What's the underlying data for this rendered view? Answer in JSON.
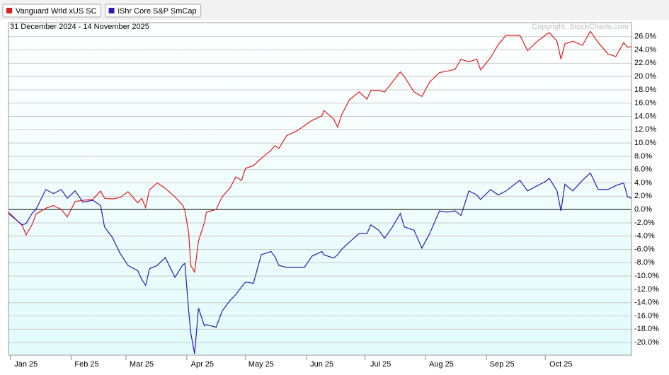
{
  "chart_data": {
    "type": "line",
    "subtitle": "31 December 2024 - 14 November 2025",
    "copyright": "Copyright, StockCharts.com",
    "x": [
      0,
      7,
      9,
      12,
      14,
      19,
      23,
      27,
      30,
      34,
      38,
      43,
      47,
      49,
      53,
      57,
      61,
      66,
      68,
      70,
      72,
      76,
      80,
      85,
      89,
      90,
      92,
      93,
      95,
      97,
      100,
      101,
      106,
      109,
      113,
      116,
      119,
      121,
      125,
      129,
      134,
      136,
      138,
      142,
      147,
      151,
      155,
      160,
      161,
      166,
      168,
      170,
      174,
      179,
      183,
      185,
      189,
      192,
      196,
      200,
      202,
      207,
      211,
      215,
      220,
      224,
      228,
      231,
      235,
      239,
      241,
      246,
      250,
      254,
      261,
      265,
      270,
      274,
      276,
      280,
      282,
      284,
      288,
      293,
      297,
      301,
      306,
      310,
      314,
      316,
      318
    ],
    "series": [
      {
        "name": "Vanguard Wrld xUS SC",
        "color": "#e41a1c",
        "values": [
          -0.4,
          -2.4,
          -3.8,
          -2.3,
          -0.7,
          0.2,
          0.6,
          0.0,
          -1.1,
          1.2,
          1.4,
          1.5,
          2.8,
          1.7,
          1.6,
          1.8,
          2.7,
          1.0,
          1.7,
          0.3,
          3.0,
          4.0,
          3.2,
          1.9,
          0.6,
          -0.1,
          -3.6,
          -8.4,
          -9.4,
          -4.7,
          -2.0,
          -0.4,
          0.0,
          1.9,
          3.2,
          4.9,
          4.4,
          6.2,
          6.6,
          7.7,
          8.9,
          9.6,
          9.2,
          11.1,
          11.8,
          12.6,
          13.4,
          14.1,
          14.9,
          13.6,
          12.4,
          14.2,
          16.5,
          17.7,
          16.6,
          17.9,
          17.9,
          17.7,
          19.2,
          20.7,
          20.0,
          17.7,
          17.0,
          19.2,
          20.6,
          20.8,
          21.1,
          22.6,
          22.2,
          22.6,
          21.0,
          22.8,
          24.8,
          26.2,
          26.2,
          23.9,
          25.3,
          26.2,
          26.6,
          25.3,
          22.6,
          24.9,
          25.3,
          24.7,
          26.8,
          25.1,
          23.4,
          23.0,
          25.1,
          24.4,
          24.5
        ]
      },
      {
        "name": "iShr Core S&P SmCap",
        "color": "#2a1cb0",
        "values": [
          -0.6,
          -2.3,
          -2.1,
          -0.6,
          0.0,
          3.0,
          2.4,
          3.0,
          1.7,
          2.8,
          1.1,
          1.4,
          0.6,
          -2.6,
          -4.2,
          -6.6,
          -8.4,
          -9.2,
          -10.5,
          -11.4,
          -8.9,
          -8.4,
          -7.2,
          -10.2,
          -8.3,
          -8.1,
          -15.3,
          -18.5,
          -21.7,
          -14.8,
          -17.5,
          -17.3,
          -17.7,
          -15.3,
          -13.7,
          -12.8,
          -11.6,
          -10.9,
          -11.1,
          -6.8,
          -6.3,
          -7.1,
          -8.4,
          -8.7,
          -8.7,
          -8.7,
          -7.0,
          -6.3,
          -6.8,
          -7.3,
          -6.8,
          -6.0,
          -4.9,
          -3.6,
          -3.6,
          -2.3,
          -3.1,
          -4.3,
          -2.6,
          -0.6,
          -2.6,
          -3.1,
          -5.8,
          -3.6,
          -0.2,
          -0.4,
          -0.2,
          -0.9,
          2.8,
          2.2,
          1.5,
          3.0,
          2.2,
          2.8,
          4.4,
          2.8,
          3.6,
          4.2,
          4.7,
          2.8,
          -0.2,
          3.8,
          2.8,
          4.4,
          5.5,
          3.0,
          3.0,
          3.6,
          4.0,
          1.9,
          1.7
        ]
      }
    ],
    "xlim": [
      0,
      318
    ],
    "xticks": [
      {
        "value": 1,
        "label": "Jan 25"
      },
      {
        "value": 32,
        "label": "Feb 25"
      },
      {
        "value": 60,
        "label": "Mar 25"
      },
      {
        "value": 91,
        "label": "Apr 25"
      },
      {
        "value": 121,
        "label": "May 25"
      },
      {
        "value": 152,
        "label": "Jun 25"
      },
      {
        "value": 182,
        "label": "Jul 25"
      },
      {
        "value": 213,
        "label": "Aug 25"
      },
      {
        "value": 244,
        "label": "Sep 25"
      },
      {
        "value": 274,
        "label": "Oct 25"
      }
    ],
    "ylim": [
      -21.9,
      28.1
    ],
    "yticks": [
      {
        "value": 26,
        "label": "26.0%"
      },
      {
        "value": 24,
        "label": "24.0%"
      },
      {
        "value": 22,
        "label": "22.0%"
      },
      {
        "value": 20,
        "label": "20.0%"
      },
      {
        "value": 18,
        "label": "18.0%"
      },
      {
        "value": 16,
        "label": "16.0%"
      },
      {
        "value": 14,
        "label": "14.0%"
      },
      {
        "value": 12,
        "label": "12.0%"
      },
      {
        "value": 10,
        "label": "10.0%"
      },
      {
        "value": 8,
        "label": "8.0%"
      },
      {
        "value": 6,
        "label": "6.0%"
      },
      {
        "value": 4,
        "label": "4.0%"
      },
      {
        "value": 2,
        "label": "2.0%"
      },
      {
        "value": 0,
        "label": "0.0%"
      },
      {
        "value": -2,
        "label": "-2.0%"
      },
      {
        "value": -4,
        "label": "-4.0%"
      },
      {
        "value": -6,
        "label": "-6.0%"
      },
      {
        "value": -8,
        "label": "-8.0%"
      },
      {
        "value": -10,
        "label": "-10.0%"
      },
      {
        "value": -12,
        "label": "-12.0%"
      },
      {
        "value": -14,
        "label": "-14.0%"
      },
      {
        "value": -16,
        "label": "-16.0%"
      },
      {
        "value": -18,
        "label": "-18.0%"
      },
      {
        "value": -20,
        "label": "-20.0%"
      }
    ],
    "grid": true
  }
}
